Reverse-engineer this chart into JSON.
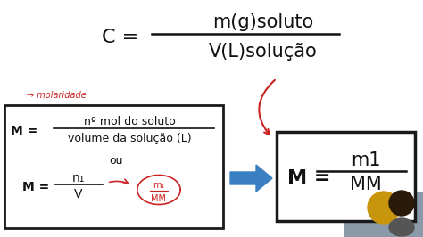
{
  "bg_color": "#ffffff",
  "top_formula_C": "C =",
  "top_formula_num": "m(g)soluto",
  "top_formula_den": "V(L)solução",
  "molarity_label": "→ molaridade",
  "left_line_num": "nº mol do soluto",
  "left_line_den": "volume da solução (L)",
  "left_ou": "ou",
  "left_n1": "n₁",
  "left_V": "V",
  "arrow_color": "#3a7fc1",
  "right_M": "M =",
  "right_m1": "m1",
  "right_MM": "MM",
  "red_color": "#cc2222",
  "box_edge": "#1a1a1a",
  "text_black": "#111111"
}
